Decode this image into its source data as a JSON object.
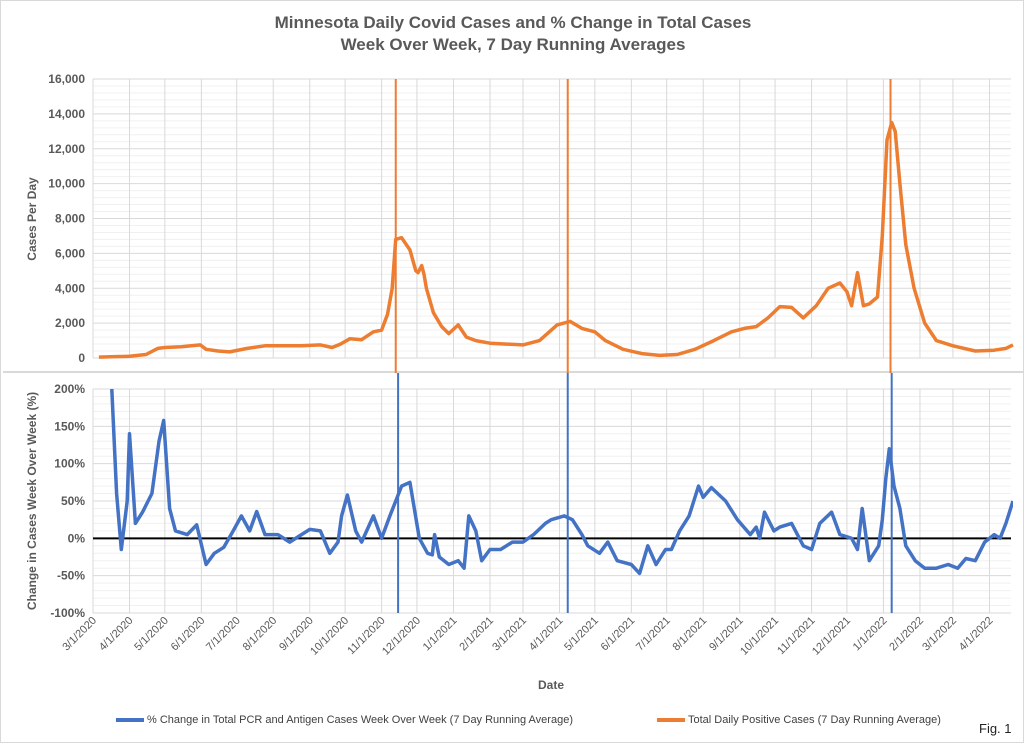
{
  "chart_data": [
    {
      "type": "line",
      "title": "Minnesota Daily Covid Cases  and % Change in Total Cases",
      "subtitle": "Week Over Week, 7 Day Running Averages",
      "ylabel": "Cases Per Day",
      "ylim": [
        0,
        16000
      ],
      "yticks": [
        "0",
        "2,000",
        "4,000",
        "6,000",
        "8,000",
        "10,000",
        "12,000",
        "14,000",
        "16,000"
      ],
      "grid": true,
      "series": [
        {
          "name": "Total Daily Positive Cases (7 Day Running Average)",
          "color": "#ED7D31",
          "x": [
            "3/6/2020",
            "3/20/2020",
            "4/1/2020",
            "4/15/2020",
            "4/25/2020",
            "5/1/2020",
            "5/15/2020",
            "5/31/2020",
            "6/5/2020",
            "6/15/2020",
            "6/25/2020",
            "7/10/2020",
            "7/25/2020",
            "8/10/2020",
            "8/25/2020",
            "9/10/2020",
            "9/20/2020",
            "9/27/2020",
            "10/5/2020",
            "10/15/2020",
            "10/25/2020",
            "11/1/2020",
            "11/6/2020",
            "11/10/2020",
            "11/13/2020",
            "11/18/2020",
            "11/25/2020",
            "11/30/2020",
            "12/2/2020",
            "12/5/2020",
            "12/7/2020",
            "12/9/2020",
            "12/15/2020",
            "12/22/2020",
            "12/28/2020",
            "1/5/2021",
            "1/12/2021",
            "1/20/2021",
            "2/1/2021",
            "2/15/2021",
            "3/1/2021",
            "3/15/2021",
            "3/30/2021",
            "4/10/2021",
            "4/20/2021",
            "5/1/2021",
            "5/10/2021",
            "5/25/2021",
            "6/10/2021",
            "6/25/2021",
            "7/10/2021",
            "7/25/2021",
            "8/10/2021",
            "8/25/2021",
            "9/5/2021",
            "9/15/2021",
            "9/25/2021",
            "10/5/2021",
            "10/15/2021",
            "10/25/2021",
            "11/5/2021",
            "11/15/2021",
            "11/25/2021",
            "12/1/2021",
            "12/5/2021",
            "12/10/2021",
            "12/15/2021",
            "12/20/2021",
            "12/27/2021",
            "12/31/2021",
            "1/4/2022",
            "1/8/2022",
            "1/11/2022",
            "1/15/2022",
            "1/20/2022",
            "1/27/2022",
            "2/5/2022",
            "2/15/2022",
            "3/1/2022",
            "3/20/2022",
            "4/5/2022",
            "4/15/2022",
            "4/21/2022"
          ],
          "y": [
            50,
            80,
            100,
            200,
            550,
            600,
            650,
            750,
            500,
            400,
            350,
            550,
            700,
            700,
            700,
            750,
            600,
            800,
            1100,
            1050,
            1500,
            1600,
            2500,
            4000,
            6800,
            6900,
            6200,
            5000,
            4900,
            5300,
            4800,
            4000,
            2600,
            1800,
            1400,
            1900,
            1200,
            1000,
            850,
            800,
            750,
            1000,
            1900,
            2100,
            1700,
            1500,
            1000,
            500,
            250,
            150,
            200,
            500,
            1000,
            1500,
            1700,
            1800,
            2300,
            2950,
            2900,
            2300,
            3000,
            4000,
            4300,
            3800,
            3000,
            4900,
            3000,
            3100,
            3500,
            7000,
            12500,
            13500,
            13000,
            10000,
            6500,
            4000,
            2000,
            1000,
            700,
            400,
            450,
            550,
            750
          ]
        }
      ],
      "markers": [
        "11/13/2020",
        "4/8/2021",
        "1/7/2022"
      ]
    },
    {
      "type": "line",
      "ylabel": "Change in Cases Week Over Week (%)",
      "xlabel": "Date",
      "ylim": [
        -100,
        200
      ],
      "yticks": [
        "-100%",
        "-50%",
        "0%",
        "50%",
        "100%",
        "150%",
        "200%"
      ],
      "xticks": [
        "3/1/2020",
        "4/1/2020",
        "5/1/2020",
        "6/1/2020",
        "7/1/2020",
        "8/1/2020",
        "9/1/2020",
        "10/1/2020",
        "11/1/2020",
        "12/1/2020",
        "1/1/2021",
        "2/1/2021",
        "3/1/2021",
        "4/1/2021",
        "5/1/2021",
        "6/1/2021",
        "7/1/2021",
        "8/1/2021",
        "9/1/2021",
        "10/1/2021",
        "11/1/2021",
        "12/1/2021",
        "1/1/2022",
        "2/1/2022",
        "3/1/2022",
        "4/1/2022"
      ],
      "grid": true,
      "series": [
        {
          "name": "% Change in Total PCR and Antigen Cases Week Over Week (7 Day Running Average)",
          "color": "#4472C4",
          "x": [
            "3/17/2020",
            "3/21/2020",
            "3/25/2020",
            "3/30/2020",
            "4/1/2020",
            "4/6/2020",
            "4/12/2020",
            "4/20/2020",
            "4/26/2020",
            "4/30/2020",
            "5/5/2020",
            "5/10/2020",
            "5/20/2020",
            "5/28/2020",
            "6/5/2020",
            "6/12/2020",
            "6/20/2020",
            "6/28/2020",
            "7/5/2020",
            "7/12/2020",
            "7/18/2020",
            "7/25/2020",
            "8/5/2020",
            "8/15/2020",
            "8/25/2020",
            "9/1/2020",
            "9/10/2020",
            "9/18/2020",
            "9/25/2020",
            "9/28/2020",
            "10/3/2020",
            "10/10/2020",
            "10/15/2020",
            "10/25/2020",
            "11/1/2020",
            "11/8/2020",
            "11/18/2020",
            "11/25/2020",
            "12/3/2020",
            "12/10/2020",
            "12/14/2020",
            "12/16/2020",
            "12/20/2020",
            "12/28/2020",
            "1/5/2021",
            "1/10/2021",
            "1/14/2021",
            "1/20/2021",
            "1/25/2021",
            "2/1/2021",
            "2/10/2021",
            "2/20/2021",
            "3/1/2021",
            "3/10/2021",
            "3/20/2021",
            "3/25/2021",
            "4/5/2021",
            "4/12/2021",
            "4/20/2021",
            "4/25/2021",
            "5/5/2021",
            "5/12/2021",
            "5/20/2021",
            "6/1/2021",
            "6/8/2021",
            "6/15/2021",
            "6/22/2021",
            "6/30/2021",
            "7/5/2021",
            "7/12/2021",
            "7/20/2021",
            "7/28/2021",
            "8/1/2021",
            "8/8/2021",
            "8/20/2021",
            "8/30/2021",
            "9/10/2021",
            "9/15/2021",
            "9/18/2021",
            "9/22/2021",
            "9/30/2021",
            "10/5/2021",
            "10/15/2021",
            "10/25/2021",
            "11/1/2021",
            "11/8/2021",
            "11/18/2021",
            "11/25/2021",
            "12/5/2021",
            "12/10/2021",
            "12/14/2021",
            "12/20/2021",
            "12/28/2021",
            "12/31/2021",
            "1/3/2022",
            "1/6/2022",
            "1/10/2022",
            "1/15/2022",
            "1/20/2022",
            "1/28/2022",
            "2/5/2022",
            "2/15/2022",
            "2/25/2022",
            "3/5/2022",
            "3/12/2022",
            "3/20/2022",
            "3/28/2022",
            "4/5/2022",
            "4/10/2022",
            "4/15/2022",
            "4/21/2022"
          ],
          "y": [
            200,
            60,
            -15,
            50,
            140,
            20,
            35,
            60,
            130,
            158,
            40,
            10,
            5,
            18,
            -35,
            -20,
            -12,
            10,
            30,
            10,
            36,
            5,
            5,
            -5,
            5,
            12,
            10,
            -20,
            -5,
            30,
            58,
            10,
            -5,
            30,
            0,
            30,
            70,
            75,
            0,
            -20,
            -22,
            5,
            -25,
            -35,
            -30,
            -40,
            30,
            10,
            -30,
            -15,
            -15,
            -5,
            -5,
            5,
            20,
            25,
            30,
            25,
            5,
            -10,
            -20,
            -5,
            -30,
            -35,
            -47,
            -10,
            -35,
            -15,
            -15,
            10,
            30,
            70,
            55,
            68,
            50,
            25,
            5,
            15,
            0,
            35,
            10,
            15,
            20,
            -10,
            -15,
            20,
            35,
            5,
            0,
            -15,
            40,
            -30,
            -10,
            25,
            80,
            120,
            70,
            40,
            -10,
            -30,
            -40,
            -40,
            -35,
            -40,
            -27,
            -30,
            -5,
            5,
            0,
            20,
            50
          ]
        }
      ],
      "markers": [
        "11/15/2020",
        "4/8/2021",
        "1/8/2022"
      ]
    }
  ],
  "legend": {
    "blue": "% Change in Total PCR and Antigen Cases Week Over Week (7 Day Running Average)",
    "orange": "Total Daily Positive Cases (7 Day Running Average)"
  },
  "fig_label": "Fig. 1"
}
